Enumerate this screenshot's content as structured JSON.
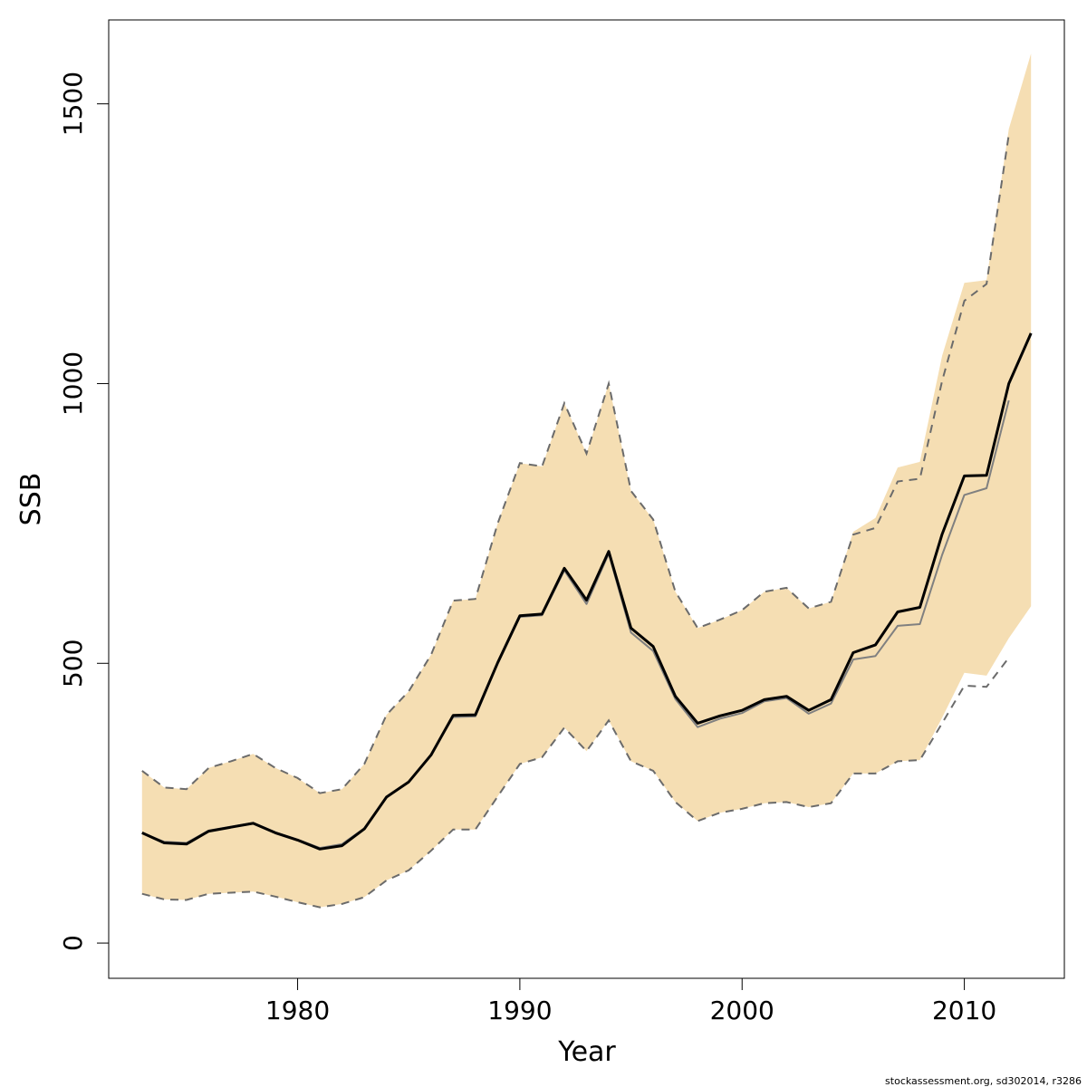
{
  "chart_data": {
    "type": "line",
    "xlabel": "Year",
    "ylabel": "SSB",
    "xlim": [
      1971.5,
      2014.5
    ],
    "ylim": [
      -63,
      1650
    ],
    "x_ticks": [
      1980,
      1990,
      2000,
      2010
    ],
    "y_ticks": [
      0,
      500,
      1000,
      1500
    ],
    "grid": false,
    "band": {
      "x": [
        1973,
        1974,
        1975,
        1976,
        1977,
        1978,
        1979,
        1980,
        1981,
        1982,
        1983,
        1984,
        1985,
        1986,
        1987,
        1988,
        1989,
        1990,
        1991,
        1992,
        1993,
        1994,
        1995,
        1996,
        1997,
        1998,
        1999,
        2000,
        2001,
        2002,
        2003,
        2004,
        2005,
        2006,
        2007,
        2008,
        2009,
        2010,
        2011,
        2012,
        2013
      ],
      "upper": [
        308,
        278,
        275,
        313,
        325,
        338,
        313,
        295,
        268,
        275,
        320,
        408,
        450,
        515,
        612,
        615,
        750,
        858,
        852,
        965,
        875,
        1000,
        808,
        757,
        628,
        563,
        578,
        595,
        628,
        635,
        598,
        610,
        735,
        760,
        850,
        860,
        1050,
        1180,
        1185,
        1455,
        1590
      ],
      "lower": [
        88,
        78,
        77,
        88,
        90,
        92,
        83,
        73,
        64,
        70,
        82,
        112,
        130,
        165,
        203,
        203,
        262,
        320,
        332,
        385,
        343,
        398,
        325,
        308,
        252,
        218,
        233,
        240,
        250,
        252,
        243,
        250,
        303,
        303,
        325,
        327,
        403,
        483,
        478,
        545,
        602
      ]
    },
    "series": [
      {
        "values": [
          197,
          179,
          177,
          200,
          207,
          214,
          197,
          184,
          168,
          174,
          204,
          261,
          288,
          336,
          407,
          408,
          501,
          585,
          588,
          670,
          613,
          700,
          563,
          530,
          441,
          393,
          406,
          416,
          435,
          441,
          416,
          435,
          519,
          533,
          592,
          600,
          731,
          835,
          836,
          1000,
          1090
        ],
        "color": "#000000"
      },
      {
        "values": [
          197,
          181,
          179,
          201,
          208,
          215,
          198,
          185,
          170,
          177,
          205,
          260,
          288,
          337,
          404,
          405,
          500,
          583,
          586,
          666,
          606,
          696,
          555,
          522,
          436,
          386,
          401,
          411,
          432,
          438,
          410,
          428,
          507,
          513,
          567,
          570,
          694,
          801,
          813,
          970
        ],
        "color": "#808080"
      }
    ],
    "upper_dashed": [
      308,
      278,
      275,
      313,
      325,
      338,
      313,
      295,
      268,
      275,
      320,
      408,
      450,
      515,
      612,
      615,
      750,
      858,
      852,
      965,
      875,
      1000,
      808,
      757,
      628,
      563,
      578,
      595,
      628,
      635,
      598,
      610,
      730,
      742,
      825,
      830,
      1005,
      1148,
      1178,
      1445
    ],
    "lower_dashed": [
      88,
      78,
      77,
      88,
      90,
      92,
      83,
      73,
      64,
      70,
      82,
      112,
      130,
      165,
      203,
      203,
      262,
      320,
      332,
      385,
      343,
      398,
      325,
      308,
      252,
      218,
      233,
      240,
      250,
      252,
      243,
      250,
      303,
      303,
      325,
      327,
      393,
      460,
      458,
      510
    ],
    "band_color": "#F5DEB3"
  },
  "credit": "stockassessment.org, sd302014, r3286"
}
